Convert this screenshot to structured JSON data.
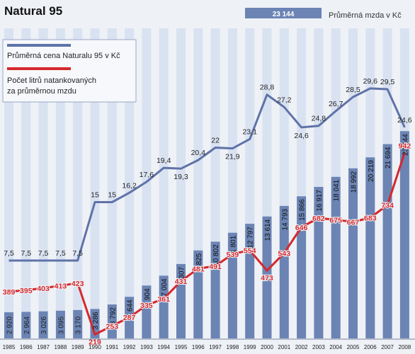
{
  "header": {
    "title": "Natural 95",
    "wage_legend_value": "23 144",
    "wage_legend_label": "Průměrná mzda v Kč"
  },
  "legend": {
    "price_label": "Průměrná cena Naturalu 95 v Kč",
    "liters_label_line1": "Počet litrů natankovaných",
    "liters_label_line2": "za průměrnou mzdu"
  },
  "colors": {
    "bar": "#6b84b4",
    "bar_stripe": "#d9e2f1",
    "price_line": "#5f73a8",
    "liters_line": "#d5282c",
    "background": "#eef1f6"
  },
  "chart_data": {
    "type": "bar",
    "categories": [
      "1985",
      "1986",
      "1987",
      "1988",
      "1989",
      "1990",
      "1991",
      "1992",
      "1993",
      "1994",
      "1995",
      "1996",
      "1997",
      "1998",
      "1999",
      "2000",
      "2001",
      "2002",
      "2003",
      "2004",
      "2005",
      "2006",
      "2007",
      "2008"
    ],
    "series": [
      {
        "name": "Průměrná mzda v Kč",
        "type": "bar",
        "values": [
          2920,
          2964,
          3026,
          3095,
          3170,
          3286,
          3792,
          4644,
          5904,
          7004,
          8307,
          9825,
          10802,
          11801,
          12797,
          13614,
          14793,
          15866,
          16917,
          18041,
          18992,
          20219,
          21694,
          23144
        ],
        "labels": [
          "2 920",
          "2 964",
          "3 026",
          "3 095",
          "3 170",
          "3 286",
          "3 792",
          "4 644",
          "5 904",
          "7 004",
          "8 307",
          "9 825",
          "10 802",
          "11 801",
          "12 797",
          "13 614",
          "14 793",
          "15 866",
          "16 917",
          "18 041",
          "18 992",
          "20 219",
          "21 694",
          "23 144"
        ]
      },
      {
        "name": "Průměrná cena Naturalu 95 v Kč",
        "type": "line",
        "values": [
          7.5,
          7.5,
          7.5,
          7.5,
          7.5,
          15,
          15,
          16.2,
          17.6,
          19.4,
          19.3,
          20.4,
          22,
          21.9,
          23.1,
          28.8,
          27.2,
          24.6,
          24.8,
          26.7,
          28.5,
          29.6,
          29.5,
          24.6
        ],
        "labels": [
          "7,5",
          "7,5",
          "7,5",
          "7,5",
          "7,5",
          "15",
          "15",
          "16,2",
          "17,6",
          "19,4",
          "19,3",
          "20,4",
          "22",
          "21,9",
          "23,1",
          "28,8",
          "27,2",
          "24,6",
          "24,8",
          "26,7",
          "28,5",
          "29,6",
          "29,5",
          "24,6"
        ]
      },
      {
        "name": "Počet litrů natankovaných za průměrnou mzdu",
        "type": "line",
        "values": [
          389,
          395,
          403,
          413,
          423,
          219,
          253,
          287,
          335,
          361,
          431,
          481,
          491,
          539,
          554,
          473,
          543,
          646,
          682,
          675,
          667,
          683,
          734,
          942
        ],
        "labels": [
          "389",
          "395",
          "403",
          "413",
          "423",
          "219",
          "253",
          "287",
          "335",
          "361",
          "431",
          "481",
          "491",
          "539",
          "554",
          "473",
          "543",
          "646",
          "682",
          "675",
          "667",
          "683",
          "734",
          "942"
        ]
      }
    ],
    "grid": false,
    "legend_position": "top-left"
  }
}
